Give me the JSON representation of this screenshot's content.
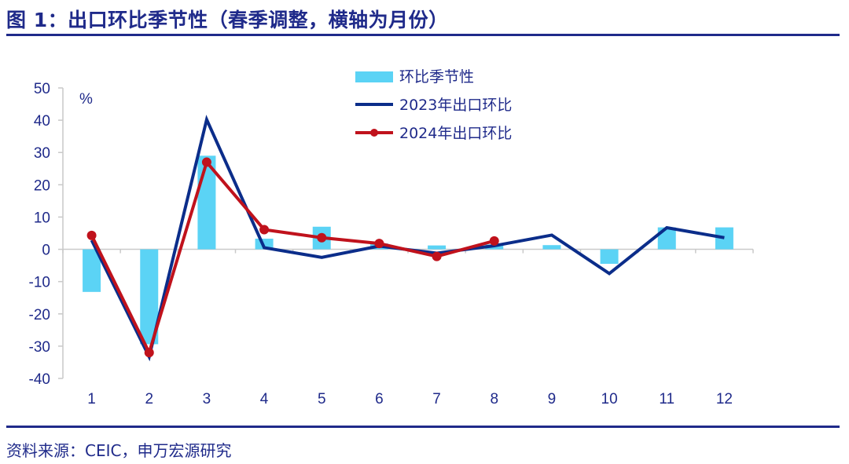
{
  "figure": {
    "title": "图 1：出口环比季节性（春季调整，横轴为月份）",
    "source": "资料来源：CEIC，申万宏源研究"
  },
  "chart_data": {
    "type": "bar",
    "categories": [
      "1",
      "2",
      "3",
      "4",
      "5",
      "6",
      "7",
      "8",
      "9",
      "10",
      "11",
      "12"
    ],
    "ylabel": "%",
    "xlabel": "",
    "ylim": [
      -40,
      50
    ],
    "yticks": [
      50,
      40,
      30,
      20,
      10,
      0,
      -10,
      -20,
      -30,
      -40
    ],
    "grid": false,
    "legend_position": "top-center",
    "series": [
      {
        "name": "环比季节性",
        "kind": "bar",
        "color": "#5bd3f5",
        "values": [
          -13.2,
          -29.4,
          29.0,
          3.3,
          7.0,
          1.8,
          1.2,
          1.5,
          1.3,
          -4.5,
          6.8,
          6.8
        ]
      },
      {
        "name": "2023年出口环比",
        "kind": "line",
        "color": "#0b2d8a",
        "values": [
          2.8,
          -33.3,
          40.2,
          0.5,
          -2.5,
          1.0,
          -1.2,
          1.1,
          4.4,
          -7.5,
          6.7,
          3.6
        ]
      },
      {
        "name": "2024年出口环比",
        "kind": "line-markers",
        "color": "#c0121c",
        "values": [
          4.3,
          -32.0,
          27.0,
          6.1,
          3.6,
          1.8,
          -2.2,
          2.6,
          null,
          null,
          null,
          null
        ]
      }
    ]
  }
}
